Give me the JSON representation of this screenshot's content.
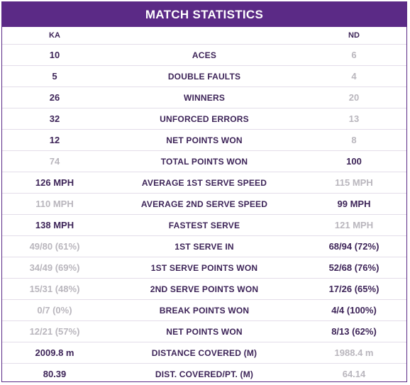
{
  "title": "MATCH STATISTICS",
  "players": {
    "left": "KA",
    "right": "ND"
  },
  "colors": {
    "accent": "#5b2a86",
    "win": "#3d2458",
    "lose": "#b9b6bd"
  },
  "rows": [
    {
      "label": "ACES",
      "left": "10",
      "right": "6",
      "winner": "left"
    },
    {
      "label": "DOUBLE FAULTS",
      "left": "5",
      "right": "4",
      "winner": "left"
    },
    {
      "label": "WINNERS",
      "left": "26",
      "right": "20",
      "winner": "left"
    },
    {
      "label": "UNFORCED ERRORS",
      "left": "32",
      "right": "13",
      "winner": "left"
    },
    {
      "label": "NET POINTS WON",
      "left": "12",
      "right": "8",
      "winner": "left"
    },
    {
      "label": "TOTAL POINTS WON",
      "left": "74",
      "right": "100",
      "winner": "right"
    },
    {
      "label": "AVERAGE 1ST SERVE SPEED",
      "left": "126 MPH",
      "right": "115 MPH",
      "winner": "left"
    },
    {
      "label": "AVERAGE 2ND SERVE SPEED",
      "left": "110 MPH",
      "right": "99 MPH",
      "winner": "right"
    },
    {
      "label": "FASTEST SERVE",
      "left": "138 MPH",
      "right": "121 MPH",
      "winner": "left"
    },
    {
      "label": "1ST SERVE IN",
      "left": "49/80 (61%)",
      "right": "68/94 (72%)",
      "winner": "right"
    },
    {
      "label": "1ST SERVE POINTS WON",
      "left": "34/49 (69%)",
      "right": "52/68 (76%)",
      "winner": "right"
    },
    {
      "label": "2ND SERVE POINTS WON",
      "left": "15/31 (48%)",
      "right": "17/26 (65%)",
      "winner": "right"
    },
    {
      "label": "BREAK POINTS WON",
      "left": "0/7 (0%)",
      "right": "4/4 (100%)",
      "winner": "right"
    },
    {
      "label": "NET POINTS WON",
      "left": "12/21 (57%)",
      "right": "8/13 (62%)",
      "winner": "right"
    },
    {
      "label": "DISTANCE COVERED (M)",
      "left": "2009.8 m",
      "right": "1988.4 m",
      "winner": "left"
    },
    {
      "label": "DIST. COVERED/PT. (M)",
      "left": "80.39",
      "right": "64.14",
      "winner": "left"
    }
  ]
}
